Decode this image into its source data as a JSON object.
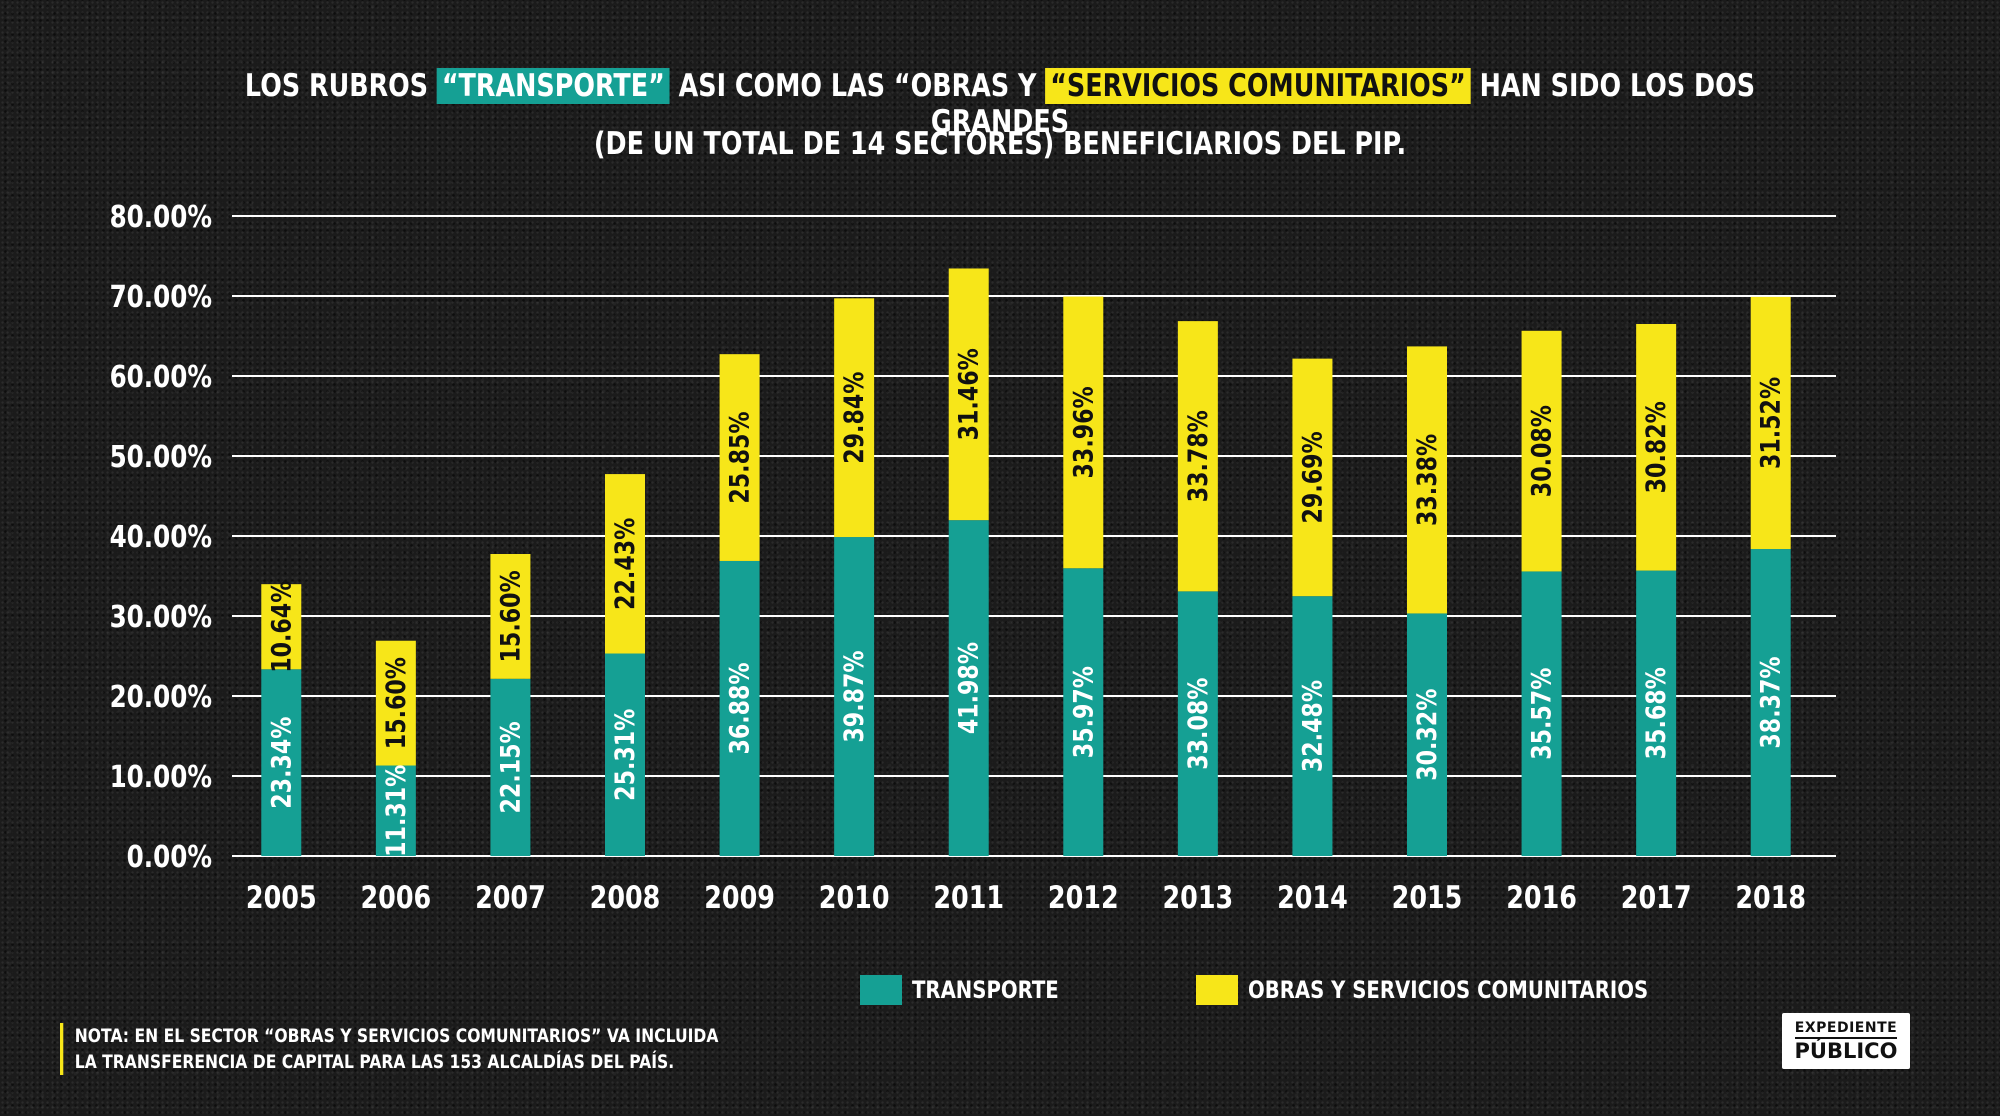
{
  "title": {
    "line1_pre": "LOS RUBROS ",
    "line1_hl1": "“TRANSPORTE”",
    "line1_mid": " ASI COMO LAS “OBRAS Y ",
    "line1_hl2": "“SERVICIOS COMUNITARIOS”",
    "line1_post": " HAN SIDO LOS DOS GRANDES",
    "line2": "(DE UN TOTAL DE 14 SECTORES) BENEFICIARIOS DEL PIP."
  },
  "colors": {
    "transporte": "#15a094",
    "obras": "#f7e619",
    "grid": "#ffffff",
    "text": "#ffffff"
  },
  "chart_data": {
    "type": "bar",
    "stacked": true,
    "categories": [
      "2005",
      "2006",
      "2007",
      "2008",
      "2009",
      "2010",
      "2011",
      "2012",
      "2013",
      "2014",
      "2015",
      "2016",
      "2017",
      "2018"
    ],
    "series": [
      {
        "name": "TRANSPORTE",
        "values": [
          23.34,
          11.31,
          22.15,
          25.31,
          36.88,
          39.87,
          41.98,
          35.97,
          33.08,
          32.48,
          30.32,
          35.57,
          35.68,
          38.37
        ],
        "labels": [
          "23.34%",
          "11.31%",
          "22.15%",
          "25.31%",
          "36.88%",
          "39.87%",
          "41.98%",
          "35.97%",
          "33.08%",
          "32.48%",
          "30.32%",
          "35.57%",
          "35.68%",
          "38.37%"
        ]
      },
      {
        "name": "OBRAS Y SERVICIOS COMUNITARIOS",
        "values": [
          10.64,
          15.6,
          15.6,
          22.43,
          25.85,
          29.84,
          31.46,
          33.96,
          33.78,
          29.69,
          33.38,
          30.08,
          30.82,
          31.52
        ],
        "labels": [
          "10.64%",
          "15.60%",
          "15.60%",
          "22.43%",
          "25.85%",
          "29.84%",
          "31.46%",
          "33.96%",
          "33.78%",
          "29.69%",
          "33.38%",
          "30.08%",
          "30.82%",
          "31.52%"
        ]
      }
    ],
    "yticks": [
      "0.00%",
      "10.00%",
      "20.00%",
      "30.00%",
      "40.00%",
      "50.00%",
      "60.00%",
      "70.00%",
      "80.00%"
    ],
    "ylim": [
      0,
      80
    ],
    "grid": true,
    "legend_position": "bottom"
  },
  "legend": {
    "transporte": "TRANSPORTE",
    "obras": "OBRAS Y SERVICIOS COMUNITARIOS"
  },
  "note": {
    "line1": "NOTA: EN EL SECTOR “OBRAS Y SERVICIOS COMUNITARIOS” VA INCLUIDA",
    "line2": "LA TRANSFERENCIA DE CAPITAL PARA LAS 153 ALCALDÍAS DEL PAÍS."
  },
  "logo": {
    "top": "EXPEDIENTE",
    "bottom": "PÚBLICO"
  }
}
